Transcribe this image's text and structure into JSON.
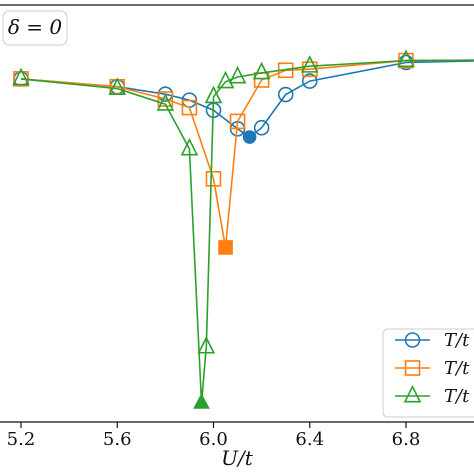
{
  "chart_data": {
    "type": "line",
    "title": "",
    "xlabel": "U/t",
    "ylabel": "",
    "annotation": "δ = 0",
    "xlim": [
      5.1,
      7.3
    ],
    "x_ticks": [
      5.2,
      5.6,
      6.0,
      6.4,
      6.8
    ],
    "x_tick_labels": [
      "5.2",
      "5.6",
      "6.0",
      "6.4",
      "6.8"
    ],
    "ylim": [
      0,
      1.0
    ],
    "y_ticks_visible": false,
    "grid": false,
    "legend_placement": "bottom-right",
    "series": [
      {
        "name": "T/t",
        "color": "#1f77b4",
        "marker": "circle",
        "x": [
          5.2,
          5.6,
          5.8,
          5.9,
          6.0,
          6.1,
          6.15,
          6.2,
          6.3,
          6.4,
          6.8,
          7.3
        ],
        "y": [
          0.869,
          0.848,
          0.828,
          0.812,
          0.785,
          0.735,
          0.713,
          0.738,
          0.827,
          0.863,
          0.913,
          0.92
        ],
        "highlight_index": 6
      },
      {
        "name": "T/t",
        "color": "#ff7f0e",
        "marker": "square",
        "x": [
          5.2,
          5.6,
          5.8,
          5.9,
          6.0,
          6.05,
          6.1,
          6.2,
          6.3,
          6.4,
          6.8,
          7.3
        ],
        "y": [
          0.869,
          0.848,
          0.815,
          0.792,
          0.601,
          0.417,
          0.755,
          0.866,
          0.892,
          0.895,
          0.918,
          0.92
        ],
        "highlight_index": 5
      },
      {
        "name": "T/t",
        "color": "#2ca02c",
        "marker": "triangle",
        "x": [
          5.2,
          5.6,
          5.8,
          5.9,
          5.95,
          5.97,
          6.0,
          6.05,
          6.1,
          6.2,
          6.4,
          6.8,
          7.3
        ],
        "y": [
          0.869,
          0.843,
          0.801,
          0.681,
          0.0,
          0.15,
          0.821,
          0.861,
          0.874,
          0.885,
          0.903,
          0.918,
          0.92
        ],
        "highlight_index": 4
      }
    ]
  }
}
